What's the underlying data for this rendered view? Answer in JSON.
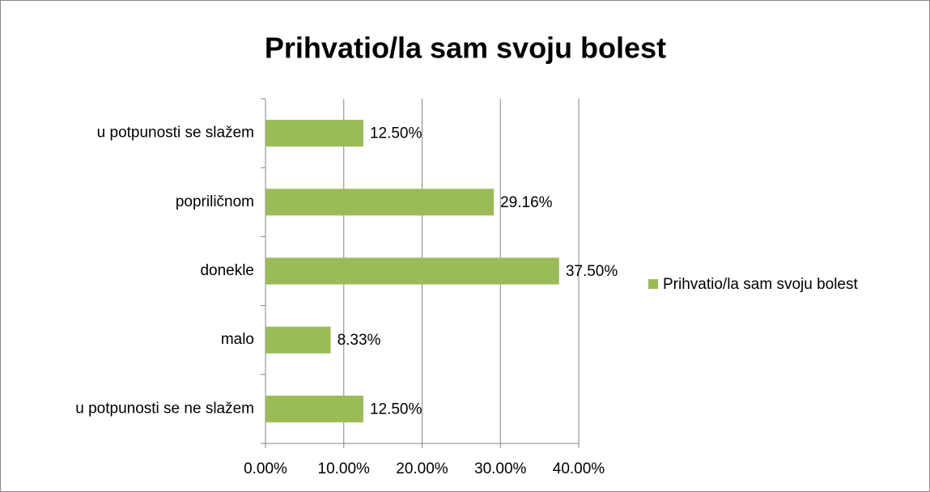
{
  "chart_data": {
    "type": "bar",
    "orientation": "horizontal",
    "title": "Prihvatio/la sam svoju bolest",
    "categories": [
      "u potpunosti se slažem",
      "popriličnom",
      "donekle",
      "malo",
      "u potpunosti se ne slažem"
    ],
    "series": [
      {
        "name": "Prihvatio/la sam svoju bolest",
        "color": "#9bbb59",
        "values": [
          12.5,
          29.16,
          37.5,
          8.33,
          12.5
        ],
        "value_labels": [
          "12.50%",
          "29.16%",
          "37.50%",
          "8.33%",
          "12.50%"
        ]
      }
    ],
    "xlim": [
      0,
      40
    ],
    "xticks": [
      {
        "value": 0,
        "label": "0.00%"
      },
      {
        "value": 10,
        "label": "10.00%"
      },
      {
        "value": 20,
        "label": "20.00%"
      },
      {
        "value": 30,
        "label": "30.00%"
      },
      {
        "value": 40,
        "label": "40.00%"
      }
    ],
    "grid": true,
    "legend": "right"
  }
}
